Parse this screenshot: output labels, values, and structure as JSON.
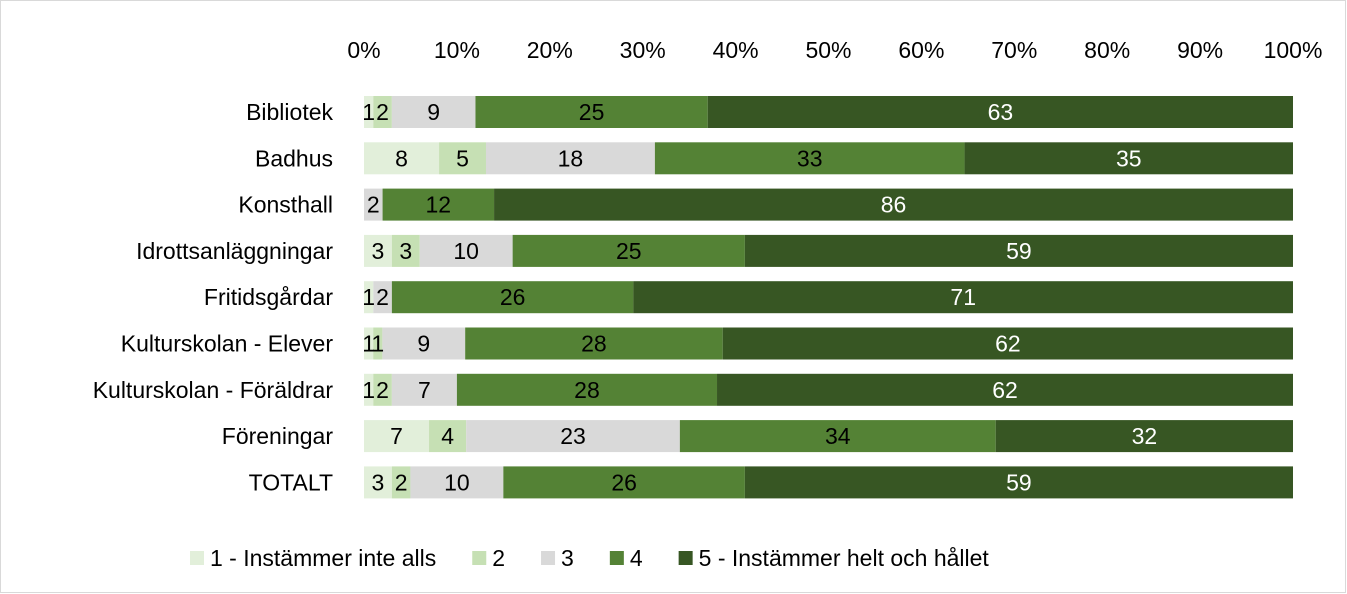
{
  "chart_data": {
    "type": "bar",
    "orientation": "horizontal",
    "stacked": "percent",
    "title": "",
    "xlabel": "",
    "ylabel": "",
    "xlim": [
      0,
      100
    ],
    "x_ticks": [
      "0%",
      "10%",
      "20%",
      "30%",
      "40%",
      "50%",
      "60%",
      "70%",
      "80%",
      "90%",
      "100%"
    ],
    "x_axis_position": "top",
    "grid": false,
    "legend_position": "bottom",
    "categories": [
      "Bibliotek",
      "Badhus",
      "Konsthall",
      "Idrottsanläggningar",
      "Fritidsgårdar",
      "Kulturskolan - Elever",
      "Kulturskolan - Föräldrar",
      "Föreningar",
      "TOTALT"
    ],
    "series": [
      {
        "name": "1 - Instämmer inte alls",
        "color": "#e2efda",
        "values": [
          1,
          8,
          0,
          3,
          1,
          1,
          1,
          7,
          3
        ]
      },
      {
        "name": "2",
        "color": "#c6e0b4",
        "values": [
          2,
          5,
          0,
          3,
          0,
          1,
          2,
          4,
          2
        ]
      },
      {
        "name": "3",
        "color": "#d9d9d9",
        "values": [
          9,
          18,
          2,
          10,
          2,
          9,
          7,
          23,
          10
        ]
      },
      {
        "name": "4",
        "color": "#548235",
        "values": [
          25,
          33,
          12,
          25,
          26,
          28,
          28,
          34,
          26
        ]
      },
      {
        "name": "5 - Instämmer helt och hållet",
        "color": "#375623",
        "values": [
          63,
          35,
          86,
          59,
          71,
          62,
          62,
          32,
          59
        ]
      }
    ],
    "label_colors": [
      "#000000",
      "#000000",
      "#000000",
      "#000000",
      "#ffffff"
    ]
  }
}
